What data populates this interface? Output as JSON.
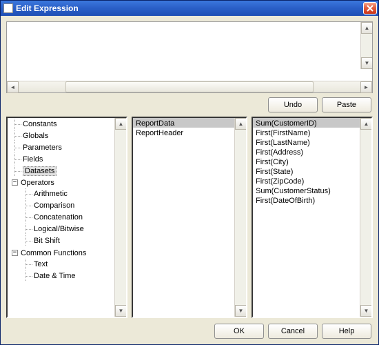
{
  "window": {
    "title": "Edit Expression"
  },
  "expression_area": {
    "value": "",
    "placeholder": ""
  },
  "buttons": {
    "undo": "Undo",
    "paste": "Paste",
    "ok": "OK",
    "cancel": "Cancel",
    "help": "Help"
  },
  "tree": {
    "constants": "Constants",
    "globals": "Globals",
    "parameters": "Parameters",
    "fields": "Fields",
    "datasets": "Datasets",
    "operators": "Operators",
    "arithmetic": "Arithmetic",
    "comparison": "Comparison",
    "concatenation": "Concatenation",
    "logical": "Logical/Bitwise",
    "bitshift": "Bit Shift",
    "common": "Common Functions",
    "text": "Text",
    "datetime": "Date & Time"
  },
  "datasets_list": [
    "ReportData",
    "ReportHeader"
  ],
  "fields_list": [
    "Sum(CustomerID)",
    "First(FirstName)",
    "First(LastName)",
    "First(Address)",
    "First(City)",
    "First(State)",
    "First(ZipCode)",
    "Sum(CustomerStatus)",
    "First(DateOfBirth)"
  ],
  "selected_dataset": 0,
  "selected_field": 0
}
